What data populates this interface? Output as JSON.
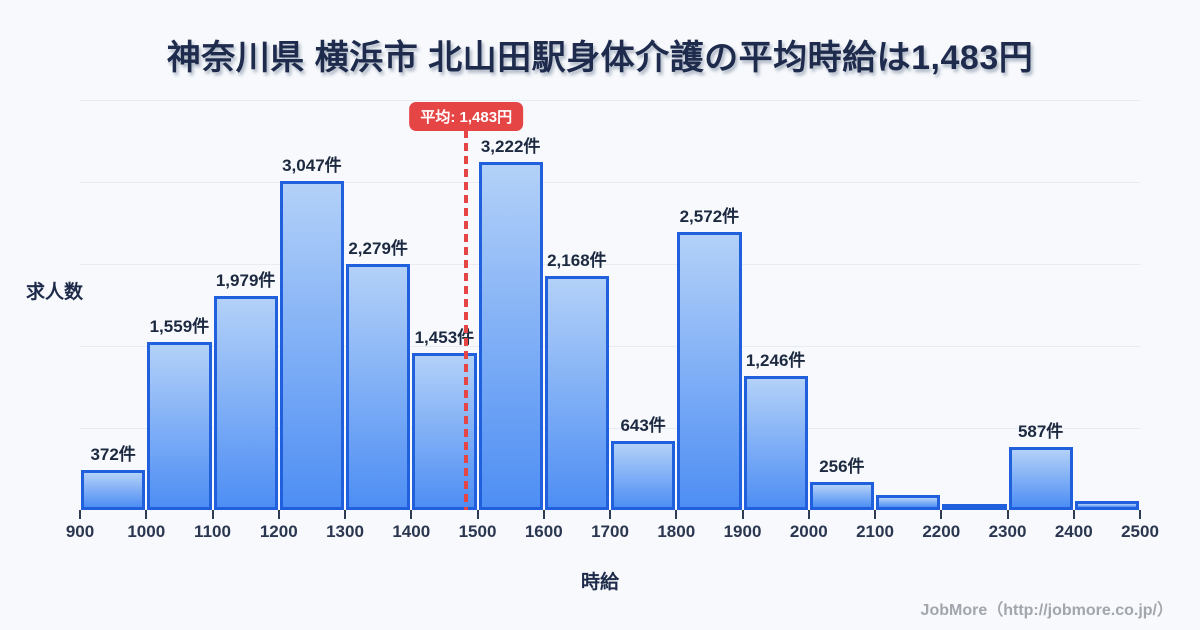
{
  "page": {
    "background": "#f7f9fc"
  },
  "title": {
    "text": "神奈川県 横浜市 北山田駅身体介護の平均時給は1,483円",
    "color": "#1f2b4d"
  },
  "average_marker": {
    "label": "平均: 1,483円",
    "value": 1483,
    "color": "#e64545"
  },
  "axes": {
    "y_label": "求人数",
    "x_label": "時給"
  },
  "footer": {
    "text": "JobMore（http://jobmore.co.jp/）"
  },
  "chart_data": {
    "type": "bar",
    "title": "神奈川県 横浜市 北山田駅身体介護の平均時給は1,483円",
    "xlabel": "時給",
    "ylabel": "求人数",
    "bin_start": 900,
    "bin_width": 100,
    "x_ticks": [
      "900",
      "1000",
      "1100",
      "1200",
      "1300",
      "1400",
      "1500",
      "1600",
      "1700",
      "1800",
      "1900",
      "2000",
      "2100",
      "2200",
      "2300",
      "2400",
      "2500"
    ],
    "values": [
      372,
      1559,
      1979,
      3047,
      2279,
      1453,
      3222,
      2168,
      643,
      2572,
      1246,
      256,
      135,
      60,
      587,
      80
    ],
    "labels": [
      "372件",
      "1,559件",
      "1,979件",
      "3,047件",
      "2,279件",
      "1,453件",
      "3,222件",
      "2,168件",
      "643件",
      "2,572件",
      "1,246件",
      "256件",
      null,
      null,
      "587件",
      null
    ],
    "average_line": {
      "x": 1483,
      "label": "平均: 1,483円",
      "color": "#e64545"
    },
    "ylim": [
      0,
      3800
    ],
    "grid": true,
    "legend": "none",
    "bar_border_color": "#2160dd",
    "bar_fill_top": "#b3d1f8",
    "bar_fill_bottom": "#4e8ef4",
    "unlabeled_values_estimated": true
  }
}
